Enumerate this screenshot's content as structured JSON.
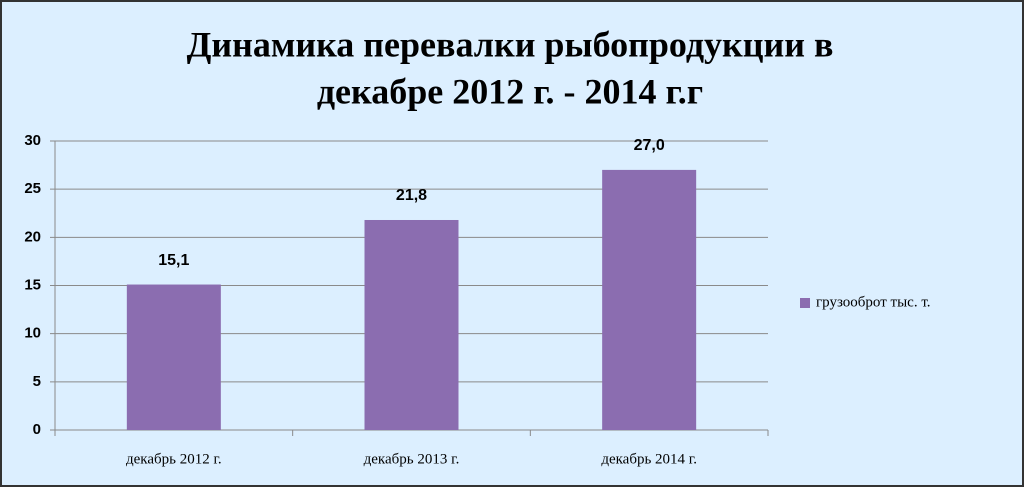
{
  "chart_data": {
    "type": "bar",
    "title": [
      "Динамика перевалки рыбопродукции в",
      "декабре 2012 г. - 2014 г.г"
    ],
    "categories": [
      "декабрь 2012 г.",
      "декабрь 2013 г.",
      "декабрь 2014 г."
    ],
    "series": [
      {
        "name": "грузооброт тыс. т.",
        "color": "#8b6db0",
        "values": [
          15.1,
          21.8,
          27.0
        ],
        "value_labels": [
          "15,1",
          "21,8",
          "27,0"
        ]
      }
    ],
    "ylim": [
      0,
      30
    ],
    "yticks": [
      0,
      5,
      10,
      15,
      20,
      25,
      30
    ],
    "grid": true,
    "legend": "right"
  }
}
